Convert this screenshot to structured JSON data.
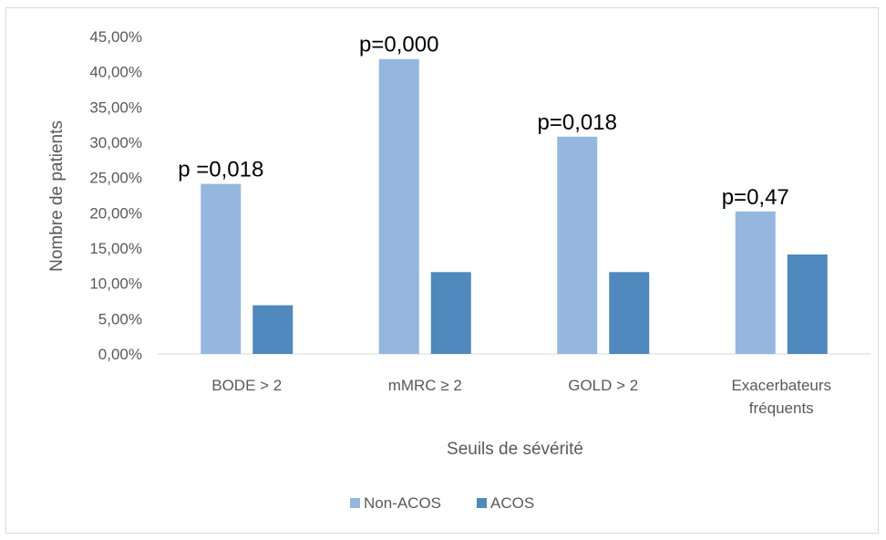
{
  "chart_data": {
    "type": "bar",
    "title": "",
    "xlabel": "Seuils de sévérité",
    "ylabel": "Nombre de patients",
    "ylim": [
      0,
      45
    ],
    "yticks": [
      "0,00%",
      "5,00%",
      "10,00%",
      "15,00%",
      "20,00%",
      "25,00%",
      "30,00%",
      "35,00%",
      "40,00%",
      "45,00%"
    ],
    "categories": [
      [
        "BODE > 2"
      ],
      [
        "mMRC ≥ 2"
      ],
      [
        "GOLD > 2"
      ],
      [
        "Exacerbateurs",
        "fréquents"
      ]
    ],
    "series": [
      {
        "name": "Non-ACOS",
        "color": "#95b7df",
        "values": [
          24.1,
          41.8,
          30.8,
          20.2
        ]
      },
      {
        "name": "ACOS",
        "color": "#4f89be",
        "values": [
          6.9,
          11.6,
          11.6,
          14.1
        ]
      }
    ],
    "annotations": [
      "p =0,018",
      "p=0,000",
      "p=0,018",
      "p=0,47"
    ],
    "grid": false,
    "legend_position": "bottom"
  }
}
